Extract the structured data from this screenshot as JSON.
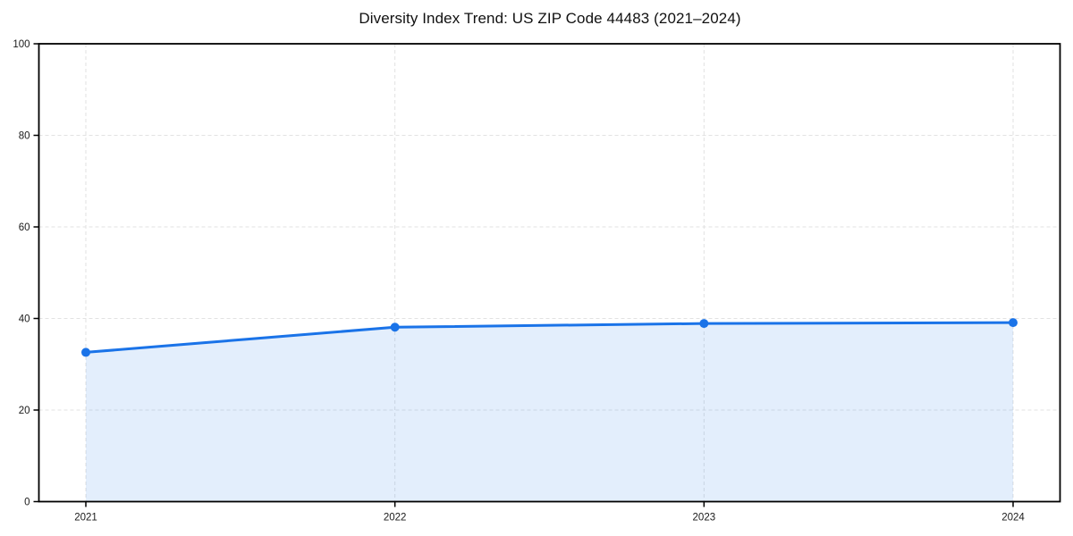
{
  "page": {
    "background": "#ffffff"
  },
  "chart_data": {
    "type": "line",
    "title": "Diversity Index Trend: US ZIP Code 44483 (2021–2024)",
    "x_categories": [
      "2021",
      "2022",
      "2023",
      "2024"
    ],
    "series": [
      {
        "name": "Diversity Index",
        "values": [
          32.6,
          38.1,
          38.9,
          39.1
        ]
      }
    ],
    "xlabel": "",
    "ylabel": "",
    "ylim": [
      0,
      100
    ],
    "yticks": [
      0,
      20,
      40,
      60,
      80,
      100
    ],
    "grid": true,
    "grid_style": "dashed",
    "legend_position": "none",
    "area_fill": true,
    "style": {
      "line_color": "#1a73e8",
      "line_width": 3,
      "marker": "circle",
      "marker_radius": 5,
      "marker_color": "#1a73e8",
      "area_fill_color": "rgba(26,115,232,0.12)",
      "grid_color": "#e2e2e2",
      "axis_color": "#000000",
      "tick_label_color": "#1a1a1a",
      "title_color": "#111111"
    }
  }
}
